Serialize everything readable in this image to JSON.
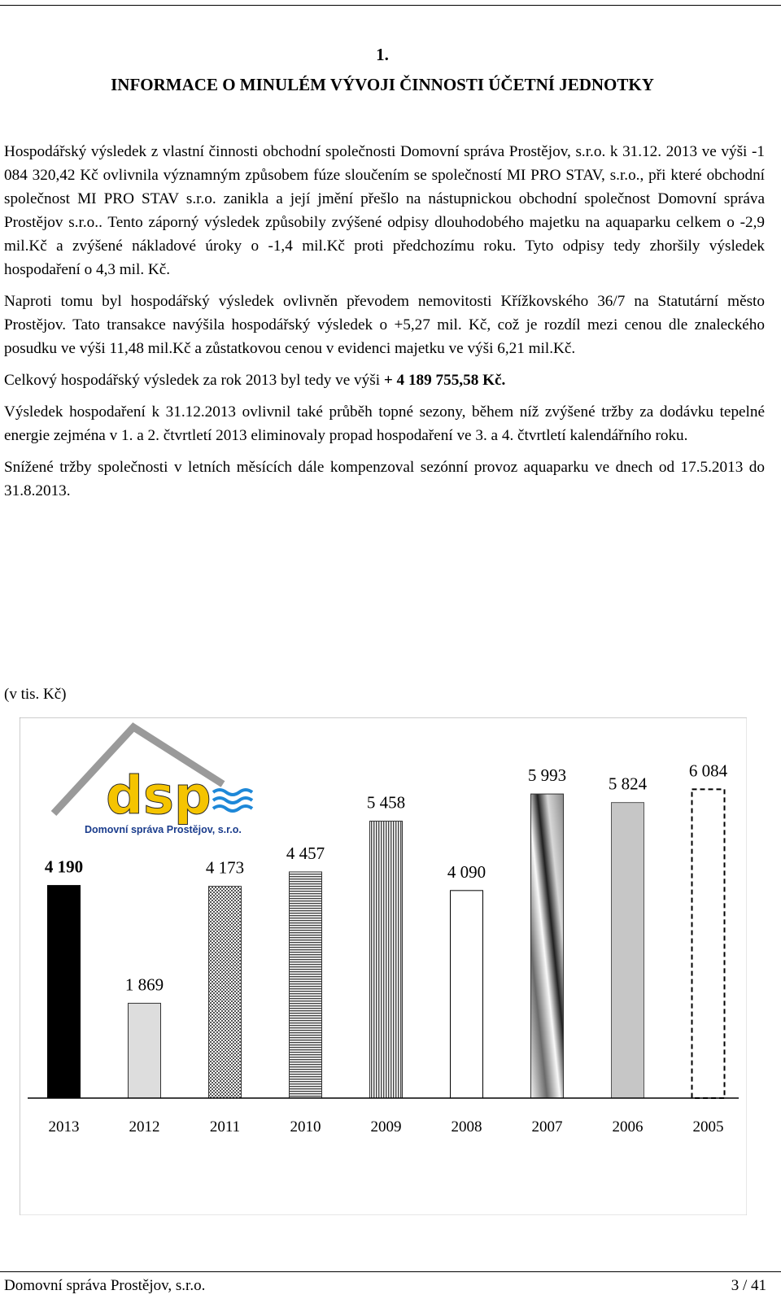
{
  "heading": {
    "number": "1.",
    "title": "INFORMACE O MINULÉM VÝVOJI ČINNOSTI ÚČETNÍ JEDNOTKY"
  },
  "paragraphs": {
    "p1": "Hospodářský výsledek z vlastní činnosti obchodní společnosti Domovní správa Prostějov, s.r.o. k 31.12. 2013 ve výši -1 084 320,42 Kč ovlivnila významným způsobem fúze sloučením se společností MI PRO STAV, s.r.o., při které obchodní společnost MI PRO STAV s.r.o. zanikla a její jmění přešlo na nástupnickou obchodní společnost Domovní správa Prostějov s.r.o.. Tento záporný výsledek způsobily zvýšené odpisy dlouhodobého majetku na aquaparku celkem o -2,9 mil.Kč a zvýšené nákladové úroky o -1,4 mil.Kč proti předchozímu roku. Tyto odpisy tedy zhoršily výsledek hospodaření o 4,3 mil. Kč.",
    "p2": "Naproti tomu byl hospodářský výsledek ovlivněn převodem nemovitosti Křížkovského 36/7 na Statutární město Prostějov. Tato transakce navýšila hospodářský výsledek o +5,27 mil. Kč, což je rozdíl mezi cenou dle znaleckého posudku ve výši 11,48 mil.Kč a zůstatkovou cenou v evidenci majetku ve výši 6,21 mil.Kč.",
    "p3_text": "Celkový hospodářský výsledek za rok 2013 byl tedy ve výši ",
    "p3_bold": "+ 4 189 755,58 Kč.",
    "p4": "Výsledek hospodaření k 31.12.2013 ovlivnil také průběh topné sezony, během níž zvýšené tržby za dodávku tepelné energie zejména v 1. a 2. čtvrtletí 2013 eliminovaly propad hospodaření ve 3. a 4. čtvrtletí kalendářního roku.",
    "p5": "Snížené  tržby společnosti v letních měsících dále kompenzoval sezónní provoz aquaparku ve dnech od 17.5.2013 do 31.8.2013."
  },
  "chart_unit": "(v tis. Kč)",
  "logo": {
    "wordmark": "dsp",
    "caption": "Domovní správa Prostějov, s.r.o.",
    "colors": {
      "roof": "#9a9a9a",
      "letters": "#f5c400",
      "waves": "#1e88d8",
      "caption": "#1a3c8c"
    }
  },
  "chart_data": {
    "type": "bar",
    "categories": [
      "2013",
      "2012",
      "2011",
      "2010",
      "2009",
      "2008",
      "2007",
      "2006",
      "2005"
    ],
    "values": [
      4190,
      1869,
      4173,
      4457,
      5458,
      4090,
      5993,
      5824,
      6084
    ],
    "value_labels": [
      "4 190",
      "1 869",
      "4 173",
      "4 457",
      "5 458",
      "4 090",
      "5 993",
      "5 824",
      "6 084"
    ],
    "bar_styles": [
      "black",
      "light-gray",
      "dotted",
      "horizontal-lines",
      "vertical-lines",
      "white",
      "diagonal-gradient",
      "gray",
      "dashed-outline"
    ],
    "highlight_first_label_bold": true,
    "ylim": [
      0,
      6700
    ],
    "grid": false,
    "legend": "none"
  },
  "footer": {
    "company": "Domovní správa Prostějov, s.r.o.",
    "page": "3 / 41"
  }
}
